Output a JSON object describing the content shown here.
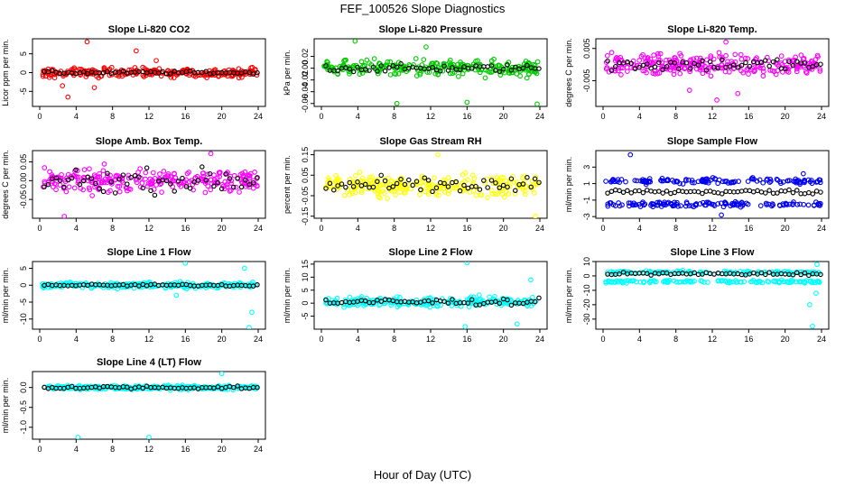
{
  "figure": {
    "title": "FEF_100526  Slope Diagnostics",
    "xlabel": "Hour of Day (UTC)"
  },
  "chart_data": [
    {
      "type": "scatter",
      "title": "Slope Li-820 CO2",
      "ylabel": "Licor ppm per min.",
      "color": "#ff0000",
      "xlim": [
        0,
        24
      ],
      "ylim": [
        -9,
        9
      ],
      "xticks": [
        "0",
        "4",
        "8",
        "12",
        "16",
        "20",
        "24"
      ],
      "yticks": [
        {
          "v": -5,
          "label": "-5"
        },
        {
          "v": 0,
          "label": "0"
        },
        {
          "v": 5,
          "label": "5"
        }
      ],
      "center": 0,
      "spread": 1.2,
      "outliers": [
        {
          "x": 5.2,
          "y": 8.2
        },
        {
          "x": 3.1,
          "y": -6.5
        },
        {
          "x": 10.6,
          "y": 5.8
        },
        {
          "x": 12.8,
          "y": 3.2
        },
        {
          "x": 2.5,
          "y": -3.5
        },
        {
          "x": 6.0,
          "y": -4.0
        }
      ],
      "black_spread": 0.4
    },
    {
      "type": "scatter",
      "title": "Slope Li-820 Pressure",
      "ylabel": "kPa per min.",
      "color": "#00cc00",
      "xlim": [
        0,
        24
      ],
      "ylim": [
        -0.065,
        0.05
      ],
      "xticks": [
        "0",
        "4",
        "8",
        "12",
        "16",
        "20",
        "24"
      ],
      "yticks": [
        {
          "v": -0.06,
          "label": "-0.06"
        },
        {
          "v": -0.04,
          "label": "-0.04"
        },
        {
          "v": -0.02,
          "label": "-0.02"
        },
        {
          "v": 0.0,
          "label": "0.00"
        },
        {
          "v": 0.02,
          "label": "0.02"
        }
      ],
      "center": 0.0,
      "spread": 0.013,
      "outliers": [
        {
          "x": 3.7,
          "y": 0.046
        },
        {
          "x": 8.3,
          "y": -0.06
        },
        {
          "x": 16.0,
          "y": -0.058
        },
        {
          "x": 23.7,
          "y": -0.061
        },
        {
          "x": 11.5,
          "y": 0.036
        }
      ],
      "black_spread": 0.006
    },
    {
      "type": "scatter",
      "title": "Slope Li-820 Temp.",
      "ylabel": "degrees C per min.",
      "color": "#ff00ff",
      "xlim": [
        0,
        24
      ],
      "ylim": [
        -0.013,
        0.008
      ],
      "xticks": [
        "0",
        "4",
        "8",
        "12",
        "16",
        "20",
        "24"
      ],
      "yticks": [
        {
          "v": -0.005,
          "label": "-0.005"
        },
        {
          "v": 0.005,
          "label": "0.005"
        }
      ],
      "center": 0.0,
      "spread": 0.003,
      "outliers": [
        {
          "x": 13.5,
          "y": 0.007
        },
        {
          "x": 12.5,
          "y": -0.011
        },
        {
          "x": 9.5,
          "y": -0.008
        },
        {
          "x": 14.8,
          "y": -0.009
        }
      ],
      "black_spread": 0.002
    },
    {
      "type": "scatter",
      "title": "Slope Amb. Box Temp.",
      "ylabel": "degrees C per min.",
      "color": "#ff00ff",
      "xlim": [
        0,
        24
      ],
      "ylim": [
        -0.1,
        0.08
      ],
      "xticks": [
        "0",
        "4",
        "8",
        "12",
        "16",
        "20",
        "24"
      ],
      "yticks": [
        {
          "v": -0.05,
          "label": "-0.05"
        },
        {
          "v": 0.0,
          "label": "0.00"
        },
        {
          "v": 0.05,
          "label": "0.05"
        }
      ],
      "center": 0.0,
      "spread": 0.03,
      "outliers": [
        {
          "x": 2.7,
          "y": -0.095
        },
        {
          "x": 18.8,
          "y": 0.072
        }
      ],
      "black_spread": 0.03
    },
    {
      "type": "scatter",
      "title": "Slope Gas Stream RH",
      "ylabel": "percent per min.",
      "color": "#ffff00",
      "xlim": [
        0,
        24
      ],
      "ylim": [
        -0.16,
        0.17
      ],
      "xticks": [
        "0",
        "4",
        "8",
        "12",
        "16",
        "20",
        "24"
      ],
      "yticks": [
        {
          "v": -0.15,
          "label": "-0.15"
        },
        {
          "v": -0.05,
          "label": "-0.05"
        },
        {
          "v": 0.05,
          "label": "0.05"
        },
        {
          "v": 0.15,
          "label": "0.15"
        }
      ],
      "center": 0.0,
      "spread": 0.05,
      "outliers": [
        {
          "x": 23.5,
          "y": -0.15
        },
        {
          "x": 12.8,
          "y": 0.15
        }
      ],
      "black_spread": 0.04
    },
    {
      "type": "scatter",
      "title": "Slope Sample Flow",
      "ylabel": "ml/min per min.",
      "color": "#0000ee",
      "xlim": [
        0,
        24
      ],
      "ylim": [
        -3.2,
        5
      ],
      "xticks": [
        "0",
        "4",
        "8",
        "12",
        "16",
        "20",
        "24"
      ],
      "yticks": [
        {
          "v": -3,
          "label": "-3"
        },
        {
          "v": -1,
          "label": "-1"
        },
        {
          "v": 1,
          "label": "1"
        },
        {
          "v": 3,
          "label": "3"
        }
      ],
      "center": 0.0,
      "spread": 0.5,
      "bands": [
        -1.5,
        1.3
      ],
      "outliers": [
        {
          "x": 3.0,
          "y": 4.5
        },
        {
          "x": 13.0,
          "y": -2.8
        },
        {
          "x": 22.0,
          "y": 2.2
        }
      ],
      "black_spread": 0.3
    },
    {
      "type": "scatter",
      "title": "Slope Line 1 Flow",
      "ylabel": "ml/min per min.",
      "color": "#00ffff",
      "xlim": [
        0,
        24
      ],
      "ylim": [
        -13,
        7
      ],
      "xticks": [
        "0",
        "4",
        "8",
        "12",
        "16",
        "20",
        "24"
      ],
      "yticks": [
        {
          "v": -10,
          "label": "-10"
        },
        {
          "v": -5,
          "label": "-5"
        },
        {
          "v": 0,
          "label": "0"
        },
        {
          "v": 5,
          "label": "5"
        }
      ],
      "center": 0.0,
      "spread": 0.8,
      "outliers": [
        {
          "x": 16.0,
          "y": 6.5
        },
        {
          "x": 23.0,
          "y": -12.5
        },
        {
          "x": 23.3,
          "y": -8.0
        },
        {
          "x": 22.5,
          "y": 5.0
        },
        {
          "x": 15.0,
          "y": -3.0
        }
      ],
      "black_spread": 0.3
    },
    {
      "type": "scatter",
      "title": "Slope Line 2 Flow",
      "ylabel": "ml/min per min.",
      "color": "#00ffff",
      "xlim": [
        0,
        24
      ],
      "ylim": [
        -10,
        16
      ],
      "xticks": [
        "0",
        "4",
        "8",
        "12",
        "16",
        "20",
        "24"
      ],
      "yticks": [
        {
          "v": -5,
          "label": "-5"
        },
        {
          "v": 0,
          "label": "0"
        },
        {
          "v": 5,
          "label": "5"
        },
        {
          "v": 10,
          "label": "10"
        },
        {
          "v": 15,
          "label": "15"
        }
      ],
      "center": 0.5,
      "spread": 1.8,
      "outliers": [
        {
          "x": 16.0,
          "y": 15.5
        },
        {
          "x": 15.8,
          "y": -9.0
        },
        {
          "x": 23.0,
          "y": 9.0
        },
        {
          "x": 21.5,
          "y": -8.0
        }
      ],
      "black_spread": 1.2
    },
    {
      "type": "scatter",
      "title": "Slope Line 3 Flow",
      "ylabel": "ml/min per min.",
      "color": "#00ffff",
      "xlim": [
        0,
        24
      ],
      "ylim": [
        -37,
        10
      ],
      "xticks": [
        "0",
        "4",
        "8",
        "12",
        "16",
        "20",
        "24"
      ],
      "yticks": [
        {
          "v": -30,
          "label": "-30"
        },
        {
          "v": -20,
          "label": "-20"
        },
        {
          "v": -10,
          "label": "-10"
        },
        {
          "v": 0,
          "label": "0"
        },
        {
          "v": 10,
          "label": "10"
        }
      ],
      "center": 1.5,
      "spread": 1.5,
      "bands": [
        -4.0,
        2.5
      ],
      "outliers": [
        {
          "x": 23.0,
          "y": -35.0
        },
        {
          "x": 22.7,
          "y": -20.0
        },
        {
          "x": 23.4,
          "y": -12.0
        },
        {
          "x": 23.5,
          "y": 8.0
        }
      ],
      "black_spread": 1.0
    },
    {
      "type": "scatter",
      "title": "Slope Line 4 (LT) Flow",
      "ylabel": "ml/min per min.",
      "color": "#00ffff",
      "xlim": [
        0,
        24
      ],
      "ylim": [
        -1.3,
        0.4
      ],
      "xticks": [
        "0",
        "4",
        "8",
        "12",
        "16",
        "20",
        "24"
      ],
      "yticks": [
        {
          "v": -1.0,
          "label": "-1.0"
        },
        {
          "v": -0.5,
          "label": "-0.5"
        },
        {
          "v": 0.0,
          "label": "0.0"
        }
      ],
      "center": 0.0,
      "spread": 0.05,
      "outliers": [
        {
          "x": 4.2,
          "y": -1.25
        },
        {
          "x": 12.0,
          "y": -1.25
        },
        {
          "x": 20.0,
          "y": 0.35
        }
      ],
      "black_spread": 0.04
    }
  ]
}
